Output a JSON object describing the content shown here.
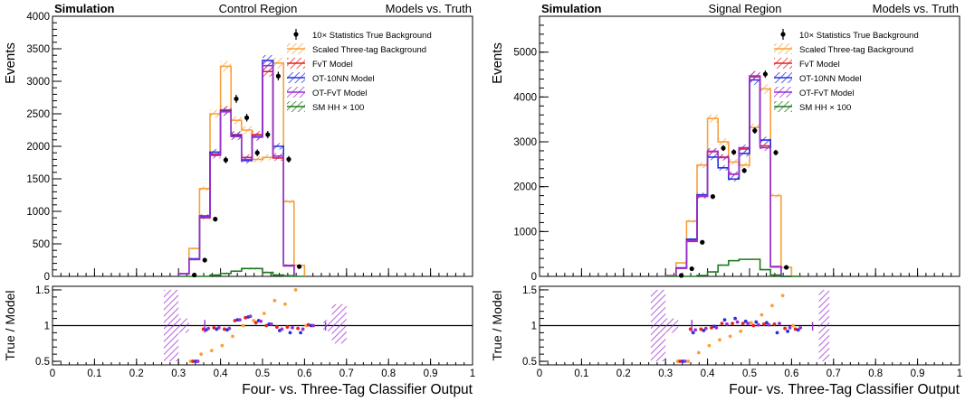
{
  "chart_data": [
    {
      "type": "histogram",
      "header": {
        "left": "Simulation",
        "center": "Control Region",
        "right": "Models vs. Truth"
      },
      "ylabel": "Events",
      "ylim": [
        0,
        4000
      ],
      "yticks": [
        "0",
        "500",
        "1000",
        "1500",
        "2000",
        "2500",
        "3000",
        "3500",
        "4000"
      ],
      "ratio": {
        "ylabel": "True / Model",
        "ylim": [
          0.45,
          1.55
        ],
        "yticks": [
          "0.5",
          "1",
          "1.5"
        ]
      },
      "xlabel": "Four- vs. Three-Tag Classifier Output",
      "xlim": [
        0,
        1
      ],
      "xticks": [
        "0",
        "0.1",
        "0.2",
        "0.3",
        "0.4",
        "0.5",
        "0.6",
        "0.7",
        "0.8",
        "0.9",
        "1"
      ],
      "legend": [
        "10× Statistics True Background",
        "Scaled Three-tag Background",
        "FvT Model",
        "OT-10NN Model",
        "OT-FvT Model",
        "SM HH × 100"
      ],
      "bin_edges": [
        0.3,
        0.325,
        0.35,
        0.375,
        0.4,
        0.425,
        0.45,
        0.475,
        0.5,
        0.525,
        0.55,
        0.575,
        0.6,
        0.625,
        0.65,
        0.675
      ],
      "series": [
        {
          "key": "three",
          "values": [
            40,
            430,
            1350,
            2500,
            3230,
            2400,
            2250,
            1800,
            1830,
            3280,
            1150,
            170
          ]
        },
        {
          "key": "fvt",
          "values": [
            40,
            260,
            900,
            1880,
            2560,
            2180,
            1830,
            2180,
            3150,
            1820,
            170
          ]
        },
        {
          "key": "ot10",
          "values": [
            40,
            270,
            930,
            1910,
            2540,
            2170,
            1780,
            2150,
            3320,
            2000,
            165
          ]
        },
        {
          "key": "otfvt",
          "values": [
            40,
            260,
            910,
            1860,
            2530,
            2150,
            1800,
            2140,
            3240,
            1850,
            160
          ]
        },
        {
          "key": "hh",
          "values": [
            0,
            0,
            0,
            20,
            45,
            80,
            120,
            120,
            60,
            20,
            10,
            0
          ]
        }
      ],
      "truth": {
        "x": [
          0.3375,
          0.3625,
          0.3875,
          0.4125,
          0.4375,
          0.4625,
          0.4875,
          0.5125,
          0.5375,
          0.5625,
          0.5875,
          0.6125,
          0.6375,
          0.6625
        ],
        "y": [
          20,
          250,
          880,
          1790,
          2730,
          2440,
          1900,
          2180,
          3080,
          1800,
          150,
          0,
          0,
          0
        ]
      },
      "ratio_points": [
        {
          "key": "three",
          "x": [
            0.3375,
            0.3625,
            0.3875,
            0.4125,
            0.4375,
            0.4625,
            0.4875,
            0.5125,
            0.5375,
            0.5625,
            0.5875,
            0.6125,
            0.6375,
            0.6625
          ],
          "y": [
            0.5,
            0.6,
            0.65,
            0.72,
            0.85,
            1.0,
            1.07,
            1.17,
            1.35,
            1.3,
            1.5,
            1.0,
            1.0,
            1.0
          ]
        },
        {
          "key": "fvt",
          "x": [
            0.3375,
            0.3625,
            0.3875,
            0.4125,
            0.4375,
            0.4625,
            0.4875,
            0.5125,
            0.5375,
            0.5625,
            0.5875,
            0.6125,
            0.6375,
            0.6625
          ],
          "y": [
            0.5,
            0.95,
            0.97,
            0.95,
            1.07,
            1.11,
            1.04,
            1.0,
            0.98,
            0.98,
            0.96,
            1.01,
            1.0,
            1.0
          ]
        },
        {
          "key": "ot10",
          "x": [
            0.3375,
            0.3625,
            0.3875,
            0.4125,
            0.4375,
            0.4625,
            0.4875,
            0.5125,
            0.5375,
            0.5625,
            0.5875,
            0.6125,
            0.6375,
            0.6625
          ],
          "y": [
            0.5,
            0.94,
            0.95,
            0.94,
            1.08,
            1.12,
            1.07,
            1.02,
            0.93,
            0.9,
            0.9,
            1.0,
            1.0,
            1.0
          ]
        },
        {
          "key": "otfvt",
          "x": [
            0.3375,
            0.3625,
            0.3875,
            0.4125,
            0.4375,
            0.4625,
            0.4875,
            0.5125,
            0.5375,
            0.5625,
            0.5875,
            0.6125,
            0.6375,
            0.6625
          ],
          "y": [
            0.5,
            0.96,
            0.97,
            0.96,
            1.08,
            1.13,
            1.06,
            1.02,
            0.95,
            0.97,
            0.95,
            1.0,
            1.0,
            1.0
          ]
        }
      ]
    },
    {
      "type": "histogram",
      "header": {
        "left": "Simulation",
        "center": "Signal Region",
        "right": "Models vs. Truth"
      },
      "ylabel": "Events",
      "ylim": [
        0,
        5800
      ],
      "yticks": [
        "0",
        "1000",
        "2000",
        "3000",
        "4000",
        "5000"
      ],
      "ratio": {
        "ylabel": "True / Model",
        "ylim": [
          0.45,
          1.55
        ],
        "yticks": [
          "0.5",
          "1",
          "1.5"
        ]
      },
      "xlabel": "Four- vs. Three-Tag Classifier Output",
      "xlim": [
        0,
        1
      ],
      "xticks": [
        "0",
        "0.1",
        "0.2",
        "0.3",
        "0.4",
        "0.5",
        "0.6",
        "0.7",
        "0.8",
        "0.9",
        "1"
      ],
      "legend": [
        "10× Statistics True Background",
        "Scaled Three-tag Background",
        "FvT Model",
        "OT-10NN Model",
        "OT-FvT Model",
        "SM HH × 100"
      ],
      "bin_edges": [
        0.3,
        0.325,
        0.35,
        0.375,
        0.4,
        0.425,
        0.45,
        0.475,
        0.5,
        0.525,
        0.55,
        0.575,
        0.6,
        0.625,
        0.65,
        0.675,
        0.7
      ],
      "series": [
        {
          "key": "three",
          "values": [
            20,
            300,
            1230,
            2480,
            3520,
            3000,
            2550,
            2480,
            3320,
            4180,
            1800,
            200,
            0
          ]
        },
        {
          "key": "fvt",
          "values": [
            15,
            180,
            780,
            1780,
            2780,
            2660,
            2280,
            2840,
            4450,
            2910,
            220,
            0
          ]
        },
        {
          "key": "ot10",
          "values": [
            15,
            190,
            830,
            1820,
            2660,
            2420,
            2170,
            2740,
            4380,
            3040,
            210,
            0
          ]
        },
        {
          "key": "otfvt",
          "values": [
            15,
            180,
            800,
            1790,
            2790,
            2650,
            2280,
            2870,
            4470,
            2870,
            215,
            0
          ]
        },
        {
          "key": "hh",
          "values": [
            0,
            0,
            0,
            20,
            100,
            250,
            350,
            380,
            380,
            150,
            30,
            0,
            0
          ]
        }
      ],
      "truth": {
        "x": [
          0.3125,
          0.3375,
          0.3625,
          0.3875,
          0.4125,
          0.4375,
          0.4625,
          0.4875,
          0.5125,
          0.5375,
          0.5625,
          0.5875,
          0.6125,
          0.6375,
          0.6625,
          0.6875
        ],
        "y": [
          0,
          20,
          170,
          760,
          1780,
          2860,
          2770,
          2360,
          3250,
          4510,
          2760,
          200,
          0,
          0,
          0,
          0
        ]
      },
      "ratio_points": [
        {
          "key": "three",
          "x": [
            0.3375,
            0.3625,
            0.3875,
            0.4125,
            0.4375,
            0.4625,
            0.4875,
            0.5125,
            0.5375,
            0.5625,
            0.5875,
            0.6125,
            0.6375,
            0.6625
          ],
          "y": [
            0.5,
            0.5,
            0.62,
            0.72,
            0.8,
            0.85,
            0.92,
            1.04,
            1.15,
            1.28,
            1.42,
            1.0,
            1.0,
            1.0
          ]
        },
        {
          "key": "fvt",
          "x": [
            0.3375,
            0.3625,
            0.3875,
            0.4125,
            0.4375,
            0.4625,
            0.4875,
            0.5125,
            0.5375,
            0.5625,
            0.5875,
            0.6125,
            0.6375,
            0.6625
          ],
          "y": [
            0.5,
            0.95,
            0.95,
            0.97,
            1.03,
            1.03,
            1.03,
            1.0,
            1.02,
            1.02,
            0.96,
            0.95,
            1.0,
            1.0
          ]
        },
        {
          "key": "ot10",
          "x": [
            0.3375,
            0.3625,
            0.3875,
            0.4125,
            0.4375,
            0.4625,
            0.4875,
            0.5125,
            0.5375,
            0.5625,
            0.5875,
            0.6125,
            0.6375,
            0.6625
          ],
          "y": [
            0.5,
            0.9,
            0.93,
            0.99,
            1.08,
            1.1,
            1.06,
            1.05,
            1.04,
            0.9,
            0.92,
            0.94,
            1.0,
            1.0
          ]
        },
        {
          "key": "otfvt",
          "x": [
            0.3375,
            0.3625,
            0.3875,
            0.4125,
            0.4375,
            0.4625,
            0.4875,
            0.5125,
            0.5375,
            0.5625,
            0.5875,
            0.6125,
            0.6375,
            0.6625
          ],
          "y": [
            0.5,
            0.94,
            0.96,
            0.97,
            1.02,
            1.05,
            1.03,
            1.01,
            1.01,
            1.03,
            0.97,
            0.97,
            1.0,
            1.0
          ]
        }
      ]
    }
  ],
  "colors": {
    "three": "#f7a13c",
    "fvt": "#e8201e",
    "ot10": "#2230e0",
    "otfvt": "#9a2fd0",
    "hh": "#1f7a1f",
    "truth": "#000000"
  }
}
